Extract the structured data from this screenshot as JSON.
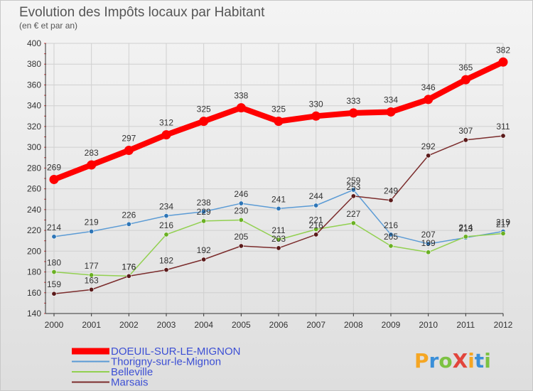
{
  "chart_data": {
    "type": "line",
    "title": "Evolution des Impôts locaux par Habitant",
    "subtitle": "(en € et par an)",
    "xlabel": "",
    "ylabel": "",
    "categories": [
      "2000",
      "2001",
      "2002",
      "2003",
      "2004",
      "2005",
      "2006",
      "2007",
      "2008",
      "2009",
      "2010",
      "2011",
      "2012"
    ],
    "ylim": [
      140,
      400
    ],
    "yticks": [
      140,
      160,
      180,
      200,
      220,
      240,
      260,
      280,
      300,
      320,
      340,
      360,
      380,
      400
    ],
    "grid": true,
    "legend_position": "bottom-left",
    "series": [
      {
        "name": "DOEUIL-SUR-LE-MIGNON",
        "color": "#ff0000",
        "values": [
          269,
          283,
          297,
          312,
          325,
          338,
          325,
          330,
          333,
          334,
          346,
          365,
          382
        ]
      },
      {
        "name": "Thorigny-sur-le-Mignon",
        "color": "#5b9bd5",
        "values": [
          214,
          219,
          226,
          234,
          238,
          246,
          241,
          244,
          259,
          216,
          207,
          213,
          219
        ]
      },
      {
        "name": "Belleville",
        "color": "#92d050",
        "values": [
          180,
          177,
          176,
          216,
          229,
          230,
          211,
          221,
          227,
          205,
          199,
          214,
          217
        ]
      },
      {
        "name": "Marsais",
        "color": "#7b2c2c",
        "values": [
          159,
          163,
          176,
          182,
          192,
          205,
          203,
          216,
          253,
          249,
          292,
          307,
          311
        ]
      }
    ]
  },
  "logo": {
    "text": "ProXiti"
  }
}
